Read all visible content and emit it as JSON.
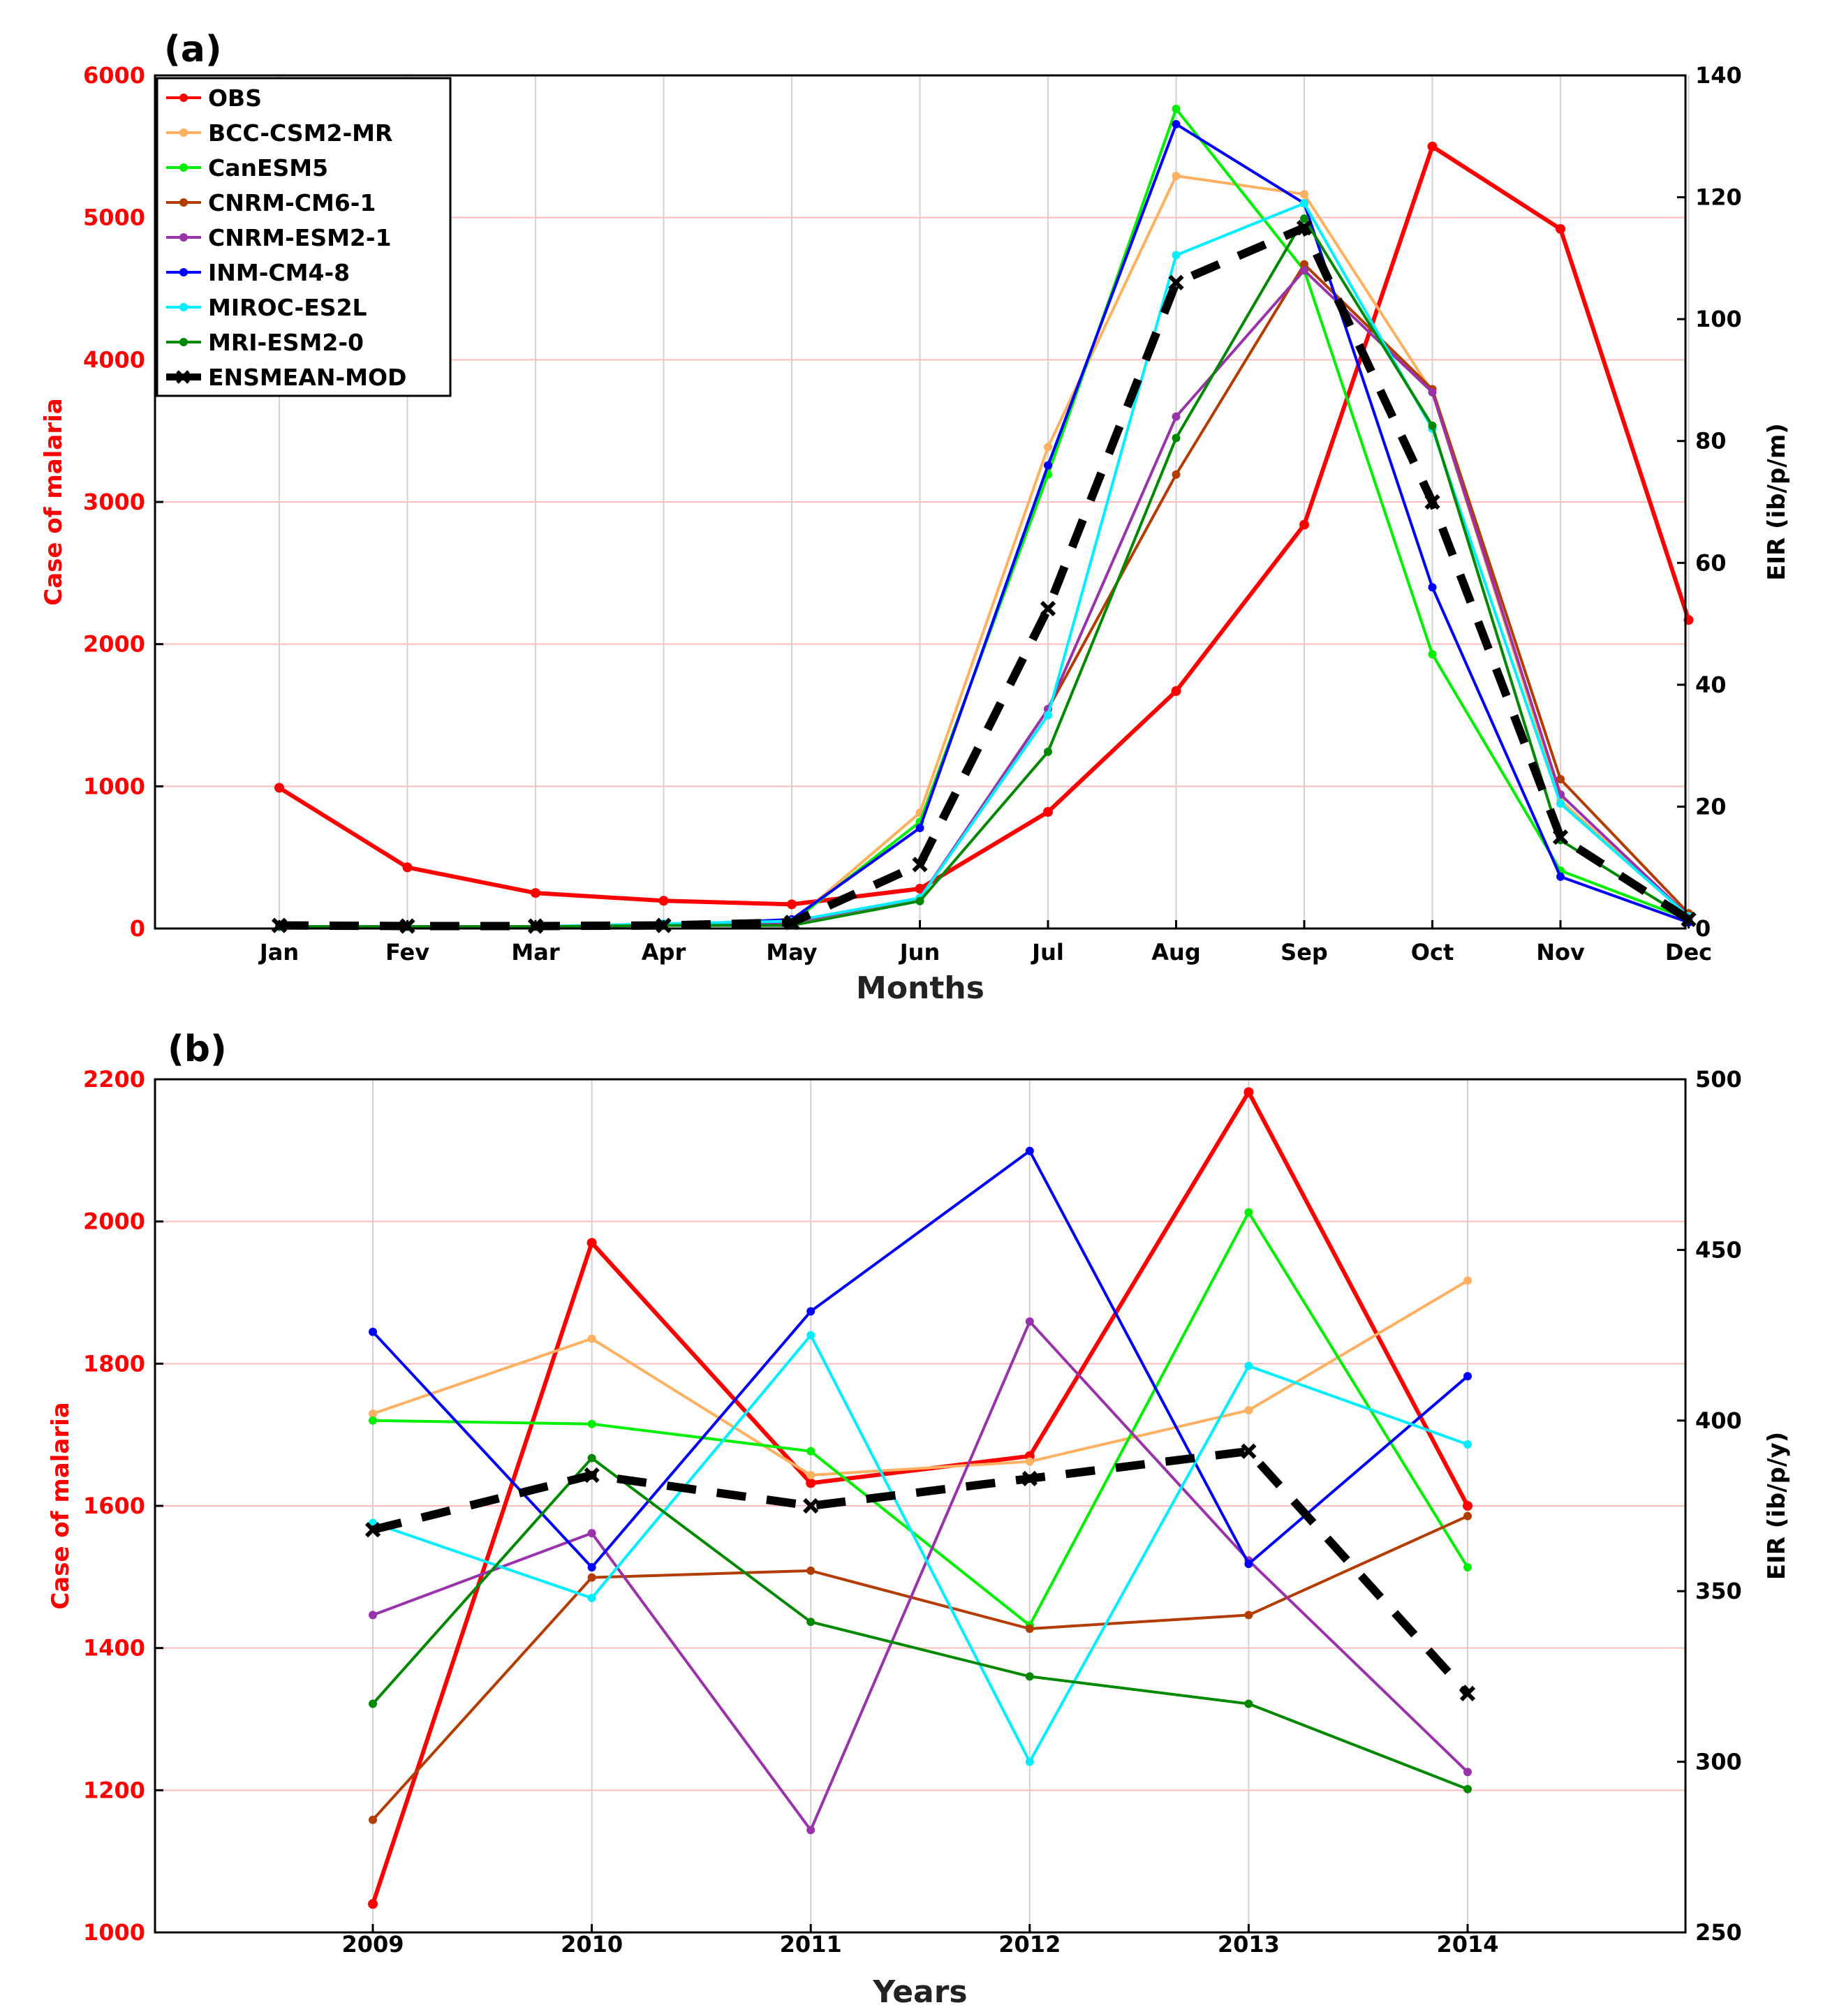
{
  "legend": [
    {
      "name": "OBS",
      "color": "#ff0000"
    },
    {
      "name": "BCC-CSM2-MR",
      "color": "#ffb060"
    },
    {
      "name": "CanESM5",
      "color": "#00ee00"
    },
    {
      "name": "CNRM-CM6-1",
      "color": "#b33c00"
    },
    {
      "name": "CNRM-ESM2-1",
      "color": "#9933aa"
    },
    {
      "name": "INM-CM4-8",
      "color": "#0000ff"
    },
    {
      "name": "MIROC-ES2L",
      "color": "#00eeff"
    },
    {
      "name": "MRI-ESM2-0",
      "color": "#008800"
    },
    {
      "name": "ENSMEAN-MOD",
      "color": "#000000"
    }
  ],
  "chart_data": [
    {
      "panel_label": "(a)",
      "type": "line",
      "xlabel": "Months",
      "ylabel_left": "Case of malaria",
      "ylabel_right": "EIR (ib/p/m)",
      "categories": [
        "Jan",
        "Fev",
        "Mar",
        "Apr",
        "May",
        "Jun",
        "Jul",
        "Aug",
        "Sep",
        "Oct",
        "Nov",
        "Dec"
      ],
      "ylim_left": [
        0,
        6000
      ],
      "yticks_left": [
        "0",
        "1000",
        "2000",
        "3000",
        "4000",
        "5000",
        "6000"
      ],
      "ylim_right": [
        0,
        140
      ],
      "yticks_right": [
        "0",
        "20",
        "40",
        "60",
        "80",
        "100",
        "120",
        "140"
      ],
      "grid": true,
      "legend_position": "top-left",
      "series": [
        {
          "name": "OBS",
          "axis": "left",
          "x": [
            1,
            2,
            3,
            4,
            5,
            6,
            7,
            8,
            9,
            10,
            11,
            12
          ],
          "values": [
            990,
            430,
            250,
            195,
            170,
            280,
            820,
            1670,
            2840,
            5500,
            4920,
            2170
          ]
        },
        {
          "name": "BCC-CSM2-MR",
          "axis": "right",
          "x": [
            1,
            2,
            3,
            4,
            5,
            6,
            7,
            8,
            9,
            10,
            11,
            12
          ],
          "values": [
            0.3,
            0.3,
            0.3,
            0.5,
            1,
            19,
            79,
            123.5,
            120.5,
            88,
            21,
            2
          ]
        },
        {
          "name": "CanESM5",
          "axis": "right",
          "x": [
            1,
            2,
            3,
            4,
            5,
            6,
            7,
            8,
            9,
            10,
            11,
            12
          ],
          "values": [
            0.3,
            0.3,
            0.3,
            0.5,
            1,
            17.5,
            74.5,
            134.5,
            108,
            45,
            9.5,
            1.5
          ]
        },
        {
          "name": "CNRM-CM6-1",
          "axis": "right",
          "x": [
            1,
            2,
            3,
            4,
            5,
            6,
            7,
            8,
            9,
            10,
            11,
            12
          ],
          "values": [
            0.3,
            0.3,
            0.3,
            0.5,
            1,
            5,
            36,
            74.5,
            109,
            88.5,
            24.5,
            2.5
          ]
        },
        {
          "name": "CNRM-ESM2-1",
          "axis": "right",
          "x": [
            1,
            2,
            3,
            4,
            5,
            6,
            7,
            8,
            9,
            10,
            11,
            12
          ],
          "values": [
            0.3,
            0.3,
            0.3,
            0.5,
            1,
            5,
            36,
            84,
            108,
            88,
            22,
            2
          ]
        },
        {
          "name": "INM-CM4-8",
          "axis": "right",
          "x": [
            1,
            2,
            3,
            4,
            5,
            6,
            7,
            8,
            9,
            10,
            11,
            12
          ],
          "values": [
            0.3,
            0.3,
            0.3,
            0.5,
            1.5,
            16.5,
            76,
            132,
            119,
            56,
            8.5,
            1
          ]
        },
        {
          "name": "MIROC-ES2L",
          "axis": "right",
          "x": [
            1,
            2,
            3,
            4,
            5,
            6,
            7,
            8,
            9,
            10,
            11,
            12
          ],
          "values": [
            0.3,
            0.3,
            0.3,
            0.8,
            1.2,
            5,
            35,
            110.5,
            119,
            82,
            20.5,
            2
          ]
        },
        {
          "name": "MRI-ESM2-0",
          "axis": "right",
          "x": [
            1,
            2,
            3,
            4,
            5,
            6,
            7,
            8,
            9,
            10,
            11,
            12
          ],
          "values": [
            0.3,
            0.3,
            0.3,
            0.5,
            0.5,
            4.5,
            29,
            80.5,
            116.5,
            82.5,
            14.5,
            1.5
          ]
        },
        {
          "name": "ENSMEAN-MOD",
          "axis": "right",
          "x": [
            1,
            2,
            3,
            4,
            5,
            6,
            7,
            8,
            9,
            10,
            11,
            12
          ],
          "values": [
            0.5,
            0.4,
            0.4,
            0.5,
            1,
            10.5,
            52.5,
            106,
            115,
            70,
            15,
            1.5
          ]
        }
      ]
    },
    {
      "panel_label": "(b)",
      "type": "line",
      "xlabel": "Years",
      "ylabel_left": "Case of malaria",
      "ylabel_right": "EIR (ib/p/y)",
      "categories": [
        "2009",
        "2010",
        "2011",
        "2012",
        "2013",
        "2014"
      ],
      "ylim_left": [
        1000,
        2200
      ],
      "yticks_left": [
        "1000",
        "1200",
        "1400",
        "1600",
        "1800",
        "2000",
        "2200"
      ],
      "ylim_right": [
        250,
        500
      ],
      "yticks_right": [
        "250",
        "300",
        "350",
        "400",
        "450",
        "500"
      ],
      "grid": true,
      "series": [
        {
          "name": "OBS",
          "axis": "left",
          "values": [
            1040,
            1970,
            1632,
            1670,
            2182,
            1600
          ]
        },
        {
          "name": "BCC-CSM2-MR",
          "axis": "right",
          "values": [
            402,
            424,
            384,
            388,
            403,
            441
          ]
        },
        {
          "name": "CanESM5",
          "axis": "right",
          "values": [
            400,
            399,
            391,
            340,
            461,
            357
          ]
        },
        {
          "name": "CNRM-CM6-1",
          "axis": "right",
          "values": [
            283,
            354,
            356,
            339,
            343,
            372
          ]
        },
        {
          "name": "CNRM-ESM2-1",
          "axis": "right",
          "values": [
            343,
            367,
            280,
            429,
            359,
            297
          ]
        },
        {
          "name": "INM-CM4-8",
          "axis": "right",
          "values": [
            426,
            357,
            432,
            479,
            358,
            413
          ]
        },
        {
          "name": "MIROC-ES2L",
          "axis": "right",
          "values": [
            370,
            348,
            425,
            300,
            416,
            393
          ]
        },
        {
          "name": "MRI-ESM2-0",
          "axis": "right",
          "values": [
            317,
            389,
            341,
            325,
            317,
            292
          ]
        },
        {
          "name": "ENSMEAN-MOD",
          "axis": "right",
          "values": [
            368,
            384,
            375,
            383,
            391,
            320
          ]
        }
      ]
    }
  ]
}
